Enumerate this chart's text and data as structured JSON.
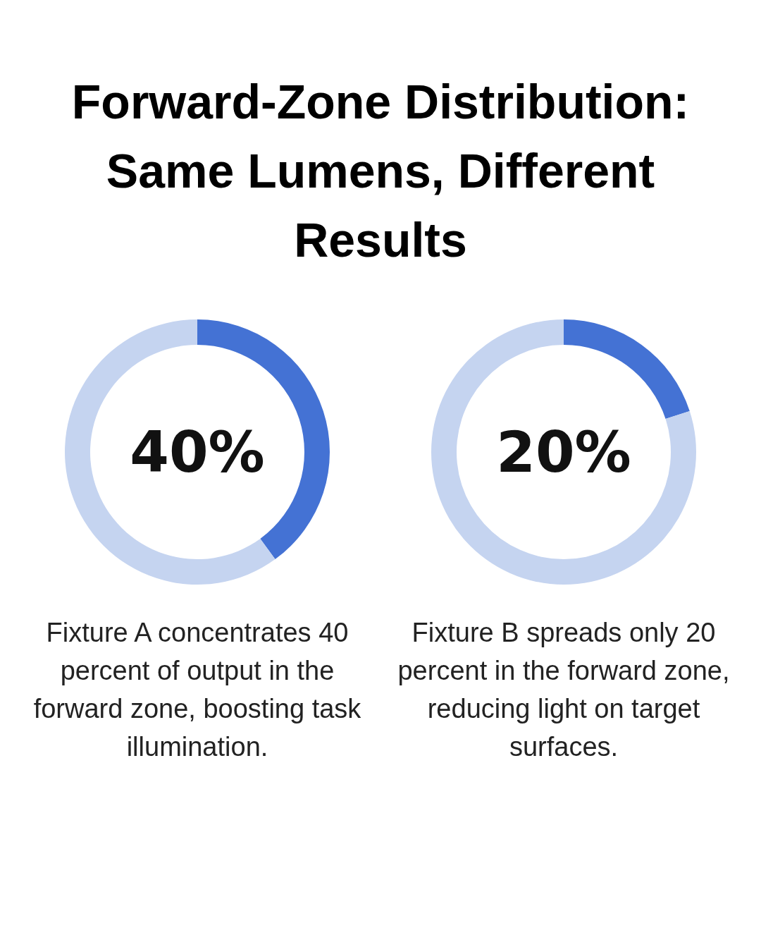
{
  "chart_data": [
    {
      "type": "donut",
      "title": "Forward-Zone Distribution: Same Lumens, Different Results",
      "categories": [
        null,
        null
      ],
      "values": [
        40,
        60
      ],
      "colors": [
        "#4472d4",
        "#c5d4f0"
      ],
      "value_labels": [
        "40%",
        null
      ],
      "annotations": [
        "Fixture A concentrates 40 percent of output in the forward zone, boosting task illumination."
      ]
    },
    {
      "type": "donut",
      "categories": [
        null,
        null
      ],
      "values": [
        20,
        80
      ],
      "colors": [
        "#4472d4",
        "#c5d4f0"
      ],
      "value_labels": [
        "20%",
        null
      ],
      "annotations": [
        "Fixture B spreads only 20 percent in the forward zone, reducing light on target surfaces."
      ]
    }
  ]
}
